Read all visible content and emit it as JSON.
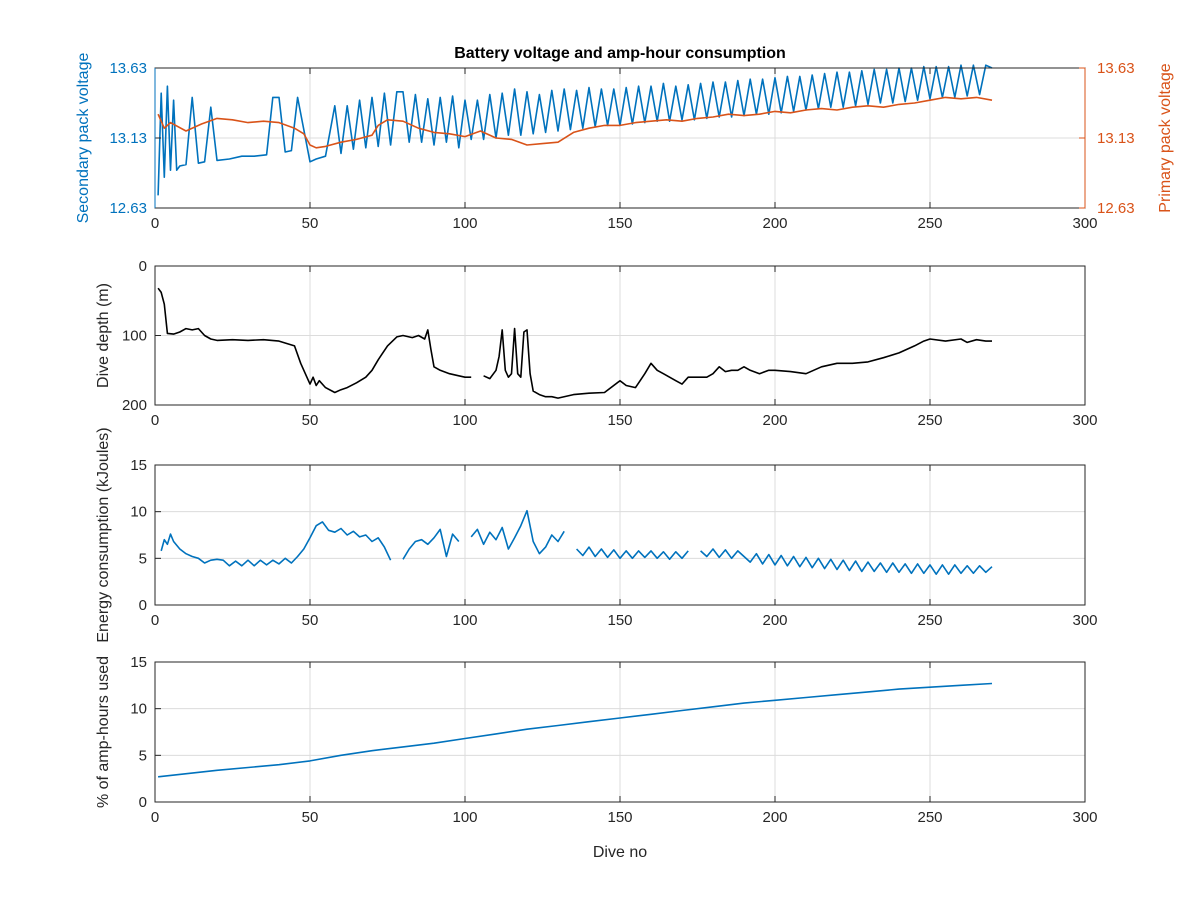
{
  "figure": {
    "title": "Battery voltage and amp-hour consumption"
  },
  "colors": {
    "blue": "#0072BD",
    "orange": "#D95319",
    "black": "#000000",
    "grid": "#dcdcdc",
    "axis": "#262626"
  },
  "chart_data": [
    {
      "type": "line",
      "title": "Battery voltage and amp-hour consumption",
      "xlabel": "",
      "ylabel": "Secondary pack voltage",
      "ylabel_right": "Primary pack voltage",
      "xlim": [
        0,
        300
      ],
      "ylim": [
        12.63,
        13.63
      ],
      "xticks": [
        0,
        50,
        100,
        150,
        200,
        250,
        300
      ],
      "yticks": [
        12.63,
        13.13,
        13.63
      ],
      "ytick_labels": [
        "12.63",
        "13.13",
        "13.63"
      ],
      "grid": true,
      "series": [
        {
          "axis": "left",
          "color": "#0072BD",
          "x": [
            1,
            2,
            3,
            4,
            5,
            6,
            7,
            8,
            10,
            12,
            14,
            16,
            18,
            20,
            24,
            28,
            32,
            36,
            38,
            40,
            42,
            44,
            46,
            50,
            52,
            55,
            58,
            60,
            62,
            64,
            66,
            68,
            70,
            72,
            74,
            76,
            78,
            80,
            82,
            84,
            86,
            88,
            90,
            92,
            94,
            96,
            98,
            100,
            102,
            104,
            106,
            108,
            110,
            112,
            114,
            116,
            118,
            120,
            122,
            124,
            126,
            128,
            130,
            132,
            134,
            136,
            138,
            140,
            142,
            144,
            146,
            148,
            150,
            152,
            154,
            156,
            158,
            160,
            162,
            164,
            166,
            168,
            170,
            172,
            174,
            176,
            178,
            180,
            182,
            184,
            186,
            188,
            190,
            192,
            194,
            196,
            198,
            200,
            202,
            204,
            206,
            208,
            210,
            212,
            214,
            216,
            218,
            220,
            222,
            224,
            226,
            228,
            230,
            232,
            234,
            236,
            238,
            240,
            242,
            244,
            246,
            248,
            250,
            252,
            254,
            256,
            258,
            260,
            262,
            264,
            266,
            268,
            270
          ],
          "y": [
            12.72,
            13.45,
            12.85,
            13.5,
            12.9,
            13.4,
            12.9,
            12.93,
            12.94,
            13.42,
            12.95,
            12.96,
            13.35,
            12.97,
            12.98,
            13.0,
            13.0,
            13.01,
            13.42,
            13.42,
            13.03,
            13.04,
            13.42,
            12.96,
            12.98,
            13.0,
            13.36,
            13.02,
            13.36,
            13.05,
            13.4,
            13.06,
            13.42,
            13.07,
            13.45,
            13.08,
            13.46,
            13.46,
            13.1,
            13.44,
            13.1,
            13.41,
            13.08,
            13.42,
            13.1,
            13.43,
            13.06,
            13.4,
            13.12,
            13.4,
            13.12,
            13.44,
            13.13,
            13.45,
            13.15,
            13.48,
            13.15,
            13.46,
            13.16,
            13.44,
            13.17,
            13.47,
            13.18,
            13.48,
            13.19,
            13.47,
            13.2,
            13.49,
            13.21,
            13.48,
            13.22,
            13.48,
            13.22,
            13.49,
            13.23,
            13.5,
            13.24,
            13.5,
            13.25,
            13.52,
            13.25,
            13.5,
            13.26,
            13.51,
            13.26,
            13.52,
            13.27,
            13.53,
            13.28,
            13.53,
            13.28,
            13.54,
            13.29,
            13.55,
            13.3,
            13.55,
            13.3,
            13.56,
            13.31,
            13.57,
            13.32,
            13.57,
            13.33,
            13.58,
            13.34,
            13.59,
            13.35,
            13.6,
            13.35,
            13.6,
            13.36,
            13.61,
            13.37,
            13.62,
            13.38,
            13.62,
            13.38,
            13.63,
            13.39,
            13.63,
            13.4,
            13.64,
            13.41,
            13.64,
            13.42,
            13.64,
            13.42,
            13.65,
            13.43,
            13.65,
            13.44,
            13.65,
            13.63
          ]
        },
        {
          "axis": "right",
          "color": "#D95319",
          "x": [
            1,
            3,
            5,
            10,
            15,
            20,
            25,
            30,
            35,
            40,
            45,
            48,
            50,
            52,
            55,
            60,
            65,
            70,
            72,
            75,
            80,
            85,
            90,
            95,
            100,
            105,
            110,
            115,
            120,
            125,
            130,
            135,
            140,
            145,
            150,
            155,
            160,
            165,
            170,
            175,
            180,
            185,
            190,
            195,
            200,
            205,
            210,
            215,
            220,
            225,
            230,
            235,
            240,
            245,
            250,
            255,
            260,
            265,
            270
          ],
          "y": [
            13.3,
            13.2,
            13.24,
            13.18,
            13.23,
            13.27,
            13.26,
            13.24,
            13.25,
            13.24,
            13.2,
            13.16,
            13.08,
            13.06,
            13.07,
            13.1,
            13.12,
            13.15,
            13.22,
            13.26,
            13.25,
            13.2,
            13.17,
            13.16,
            13.14,
            13.18,
            13.13,
            13.12,
            13.08,
            13.09,
            13.1,
            13.17,
            13.2,
            13.22,
            13.22,
            13.24,
            13.25,
            13.26,
            13.25,
            13.27,
            13.28,
            13.3,
            13.29,
            13.3,
            13.32,
            13.31,
            13.33,
            13.34,
            13.33,
            13.35,
            13.36,
            13.35,
            13.37,
            13.38,
            13.4,
            13.42,
            13.41,
            13.42,
            13.4
          ]
        }
      ]
    },
    {
      "type": "line",
      "xlabel": "",
      "ylabel": "Dive depth (m)",
      "xlim": [
        0,
        300
      ],
      "ylim": [
        200,
        0
      ],
      "reversed_y": true,
      "xticks": [
        0,
        50,
        100,
        150,
        200,
        250,
        300
      ],
      "yticks": [
        0,
        100,
        200
      ],
      "ytick_labels": [
        "0",
        "100",
        "200"
      ],
      "grid": true,
      "series": [
        {
          "color": "#000000",
          "x": [
            1,
            2,
            3,
            4,
            6,
            8,
            10,
            12,
            14,
            16,
            18,
            20,
            25,
            30,
            35,
            40,
            45,
            47,
            49,
            50,
            51,
            52,
            53,
            55,
            58,
            60,
            62,
            65,
            68,
            70,
            72,
            75,
            78,
            80,
            83,
            85,
            87,
            88,
            89,
            90,
            92,
            95,
            98,
            100,
            102,
            104,
            106,
            108,
            110,
            111,
            112,
            113,
            114,
            115,
            116,
            117,
            118,
            119,
            120,
            121,
            122,
            124,
            126,
            128,
            130,
            135,
            140,
            145,
            150,
            152,
            155,
            158,
            160,
            162,
            164,
            166,
            168,
            170,
            172,
            175,
            178,
            180,
            182,
            184,
            186,
            188,
            190,
            192,
            195,
            198,
            200,
            205,
            210,
            215,
            220,
            225,
            230,
            235,
            240,
            245,
            248,
            250,
            255,
            260,
            262,
            265,
            268,
            270
          ],
          "y": [
            32,
            38,
            55,
            97,
            98,
            95,
            90,
            92,
            90,
            100,
            105,
            107,
            106,
            107,
            106,
            108,
            115,
            140,
            160,
            170,
            160,
            172,
            165,
            175,
            182,
            178,
            175,
            168,
            160,
            150,
            135,
            115,
            102,
            100,
            103,
            100,
            105,
            92,
            120,
            145,
            150,
            155,
            158,
            160,
            160,
            null,
            158,
            162,
            150,
            130,
            92,
            150,
            160,
            155,
            90,
            155,
            160,
            95,
            92,
            155,
            180,
            185,
            188,
            188,
            190,
            185,
            183,
            182,
            165,
            172,
            175,
            155,
            140,
            150,
            155,
            160,
            165,
            170,
            160,
            160,
            160,
            155,
            145,
            152,
            150,
            150,
            145,
            150,
            155,
            150,
            150,
            152,
            155,
            145,
            140,
            140,
            138,
            132,
            125,
            115,
            108,
            105,
            108,
            105,
            110,
            106,
            108,
            108
          ]
        }
      ]
    },
    {
      "type": "line",
      "xlabel": "",
      "ylabel": "Energy consumption (kJoules)",
      "xlim": [
        0,
        300
      ],
      "ylim": [
        0,
        15
      ],
      "xticks": [
        0,
        50,
        100,
        150,
        200,
        250,
        300
      ],
      "yticks": [
        0,
        5,
        10,
        15
      ],
      "ytick_labels": [
        "0",
        "5",
        "10",
        "15"
      ],
      "grid": true,
      "series": [
        {
          "color": "#0072BD",
          "x": [
            2,
            3,
            4,
            5,
            6,
            8,
            10,
            12,
            14,
            16,
            18,
            20,
            22,
            24,
            26,
            28,
            30,
            32,
            34,
            36,
            38,
            40,
            42,
            44,
            46,
            48,
            50,
            52,
            54,
            56,
            58,
            60,
            62,
            64,
            66,
            68,
            70,
            72,
            74,
            76,
            78,
            80,
            82,
            84,
            86,
            88,
            90,
            92,
            94,
            96,
            98,
            100,
            102,
            104,
            106,
            108,
            110,
            112,
            114,
            116,
            118,
            120,
            122,
            124,
            126,
            128,
            130,
            132,
            134,
            136,
            138,
            140,
            142,
            144,
            146,
            148,
            150,
            152,
            154,
            156,
            158,
            160,
            162,
            164,
            166,
            168,
            170,
            172,
            174,
            176,
            178,
            180,
            182,
            184,
            186,
            188,
            190,
            192,
            194,
            196,
            198,
            200,
            202,
            204,
            206,
            208,
            210,
            212,
            214,
            216,
            218,
            220,
            222,
            224,
            226,
            228,
            230,
            232,
            234,
            236,
            238,
            240,
            242,
            244,
            246,
            248,
            250,
            252,
            254,
            256,
            258,
            260,
            262,
            264,
            266,
            268,
            270
          ],
          "y": [
            5.8,
            7.0,
            6.5,
            7.6,
            6.8,
            6.0,
            5.5,
            5.2,
            5.0,
            4.5,
            4.8,
            4.9,
            4.8,
            4.2,
            4.7,
            4.2,
            4.8,
            4.2,
            4.8,
            4.3,
            4.8,
            4.4,
            5.0,
            4.5,
            5.2,
            6.0,
            7.2,
            8.5,
            8.9,
            8.0,
            7.8,
            8.2,
            7.5,
            7.9,
            7.3,
            7.5,
            6.8,
            7.2,
            6.2,
            4.8,
            null,
            4.9,
            6.0,
            6.8,
            7.0,
            6.5,
            7.2,
            8.1,
            5.2,
            7.6,
            6.8,
            null,
            7.3,
            8.1,
            6.5,
            7.8,
            7.0,
            8.3,
            6.0,
            7.2,
            8.5,
            10.1,
            6.8,
            5.5,
            6.2,
            7.5,
            6.8,
            7.9,
            null,
            6.0,
            5.3,
            6.2,
            5.2,
            6.0,
            5.1,
            5.9,
            5.0,
            5.8,
            5.0,
            5.8,
            5.1,
            5.8,
            5.0,
            5.7,
            4.9,
            5.7,
            5.0,
            5.8,
            null,
            5.8,
            5.2,
            6.0,
            5.1,
            5.9,
            5.0,
            5.8,
            5.2,
            4.6,
            5.5,
            4.4,
            5.4,
            4.3,
            5.3,
            4.2,
            5.2,
            4.1,
            5.1,
            4.0,
            5.0,
            3.9,
            4.9,
            3.8,
            4.8,
            3.7,
            4.7,
            3.6,
            4.6,
            3.6,
            4.5,
            3.5,
            4.5,
            3.5,
            4.4,
            3.4,
            4.4,
            3.4,
            4.3,
            3.3,
            4.3,
            3.3,
            4.3,
            3.4,
            4.2,
            3.4,
            4.2,
            3.5,
            4.1
          ]
        }
      ]
    },
    {
      "type": "line",
      "xlabel": "Dive no",
      "ylabel": "% of amp-hours used",
      "xlim": [
        0,
        300
      ],
      "ylim": [
        0,
        15
      ],
      "xticks": [
        0,
        50,
        100,
        150,
        200,
        250,
        300
      ],
      "yticks": [
        0,
        5,
        10,
        15
      ],
      "ytick_labels": [
        "0",
        "5",
        "10",
        "15"
      ],
      "grid": true,
      "series": [
        {
          "color": "#0072BD",
          "x": [
            1,
            20,
            40,
            50,
            60,
            70,
            80,
            90,
            100,
            110,
            120,
            130,
            140,
            150,
            160,
            170,
            180,
            190,
            200,
            210,
            220,
            230,
            240,
            250,
            260,
            270
          ],
          "y": [
            2.7,
            3.4,
            4.0,
            4.4,
            5.0,
            5.5,
            5.9,
            6.3,
            6.8,
            7.3,
            7.8,
            8.2,
            8.6,
            9.0,
            9.4,
            9.8,
            10.2,
            10.6,
            10.9,
            11.2,
            11.5,
            11.8,
            12.1,
            12.3,
            12.5,
            12.7
          ]
        }
      ]
    }
  ]
}
